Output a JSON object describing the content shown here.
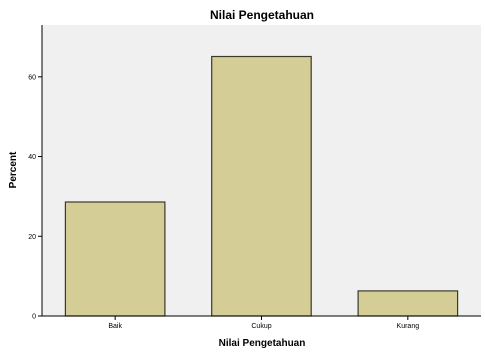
{
  "chart_data": {
    "type": "bar",
    "title": "Nilai Pengetahuan",
    "xlabel": "Nilai Pengetahuan",
    "ylabel": "Percent",
    "categories": [
      "Baik",
      "Cukup",
      "Kurang"
    ],
    "values": [
      28.6,
      65.1,
      6.3
    ],
    "ylim": [
      0,
      73
    ],
    "yticks": [
      0,
      20,
      40,
      60
    ],
    "grid": false,
    "legend": "none",
    "colors": {
      "bar_fill": "#d4cd95",
      "bar_stroke": "#3a3a2a",
      "plot_background": "#f0f0f0",
      "axis": "#000000"
    }
  }
}
